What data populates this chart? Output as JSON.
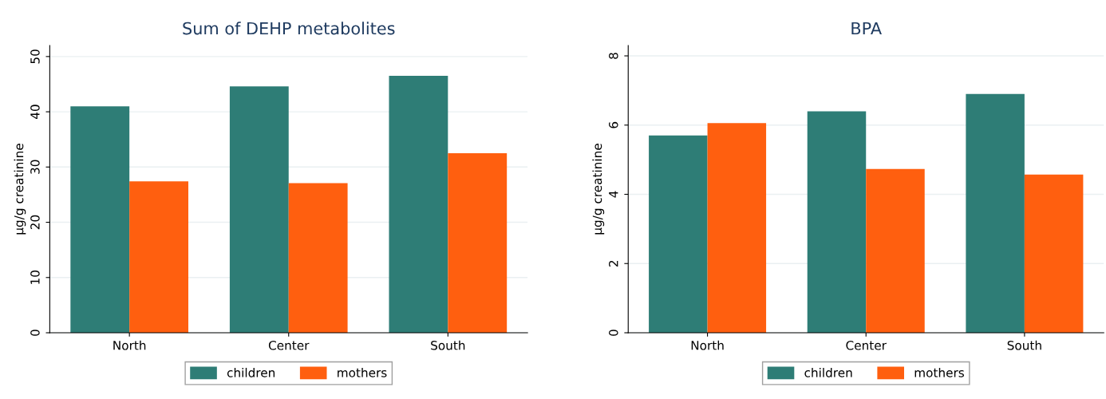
{
  "chart_data": [
    {
      "type": "bar",
      "title": "Sum of DEHP metabolites",
      "ylabel": "µg/g creatinine",
      "categories": [
        "North",
        "Center",
        "South"
      ],
      "series": [
        {
          "name": "children",
          "color": "#2e7d76",
          "values": [
            41.0,
            44.6,
            46.5
          ]
        },
        {
          "name": "mothers",
          "color": "#ff5f0f",
          "values": [
            27.4,
            27.1,
            32.5
          ]
        }
      ],
      "ylim": [
        0,
        52
      ],
      "yticks": [
        0,
        10,
        20,
        30,
        40,
        50
      ],
      "grid": "y",
      "legend": "bottom"
    },
    {
      "type": "bar",
      "title": "BPA",
      "ylabel": "µg/g creatinine",
      "categories": [
        "North",
        "Center",
        "South"
      ],
      "series": [
        {
          "name": "children",
          "color": "#2e7d76",
          "values": [
            5.7,
            6.4,
            6.9
          ]
        },
        {
          "name": "mothers",
          "color": "#ff5f0f",
          "values": [
            6.06,
            4.73,
            4.57
          ]
        }
      ],
      "ylim": [
        0,
        8.3
      ],
      "yticks": [
        0,
        2,
        4,
        6,
        8
      ],
      "grid": "y",
      "legend": "bottom"
    }
  ]
}
